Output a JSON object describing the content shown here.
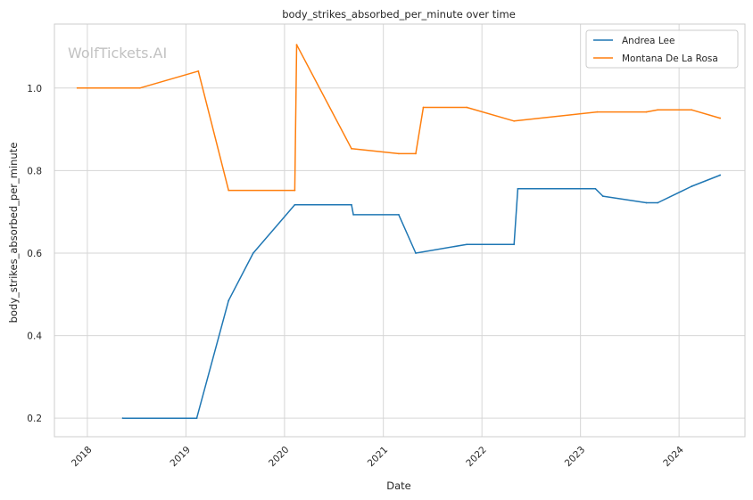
{
  "chart_data": {
    "type": "line",
    "title": "body_strikes_absorbed_per_minute over time",
    "xlabel": "Date",
    "ylabel": "body_strikes_absorbed_per_minute",
    "watermark": "WolfTickets.AI",
    "x_ticks": [
      "2018",
      "2019",
      "2020",
      "2021",
      "2022",
      "2023",
      "2024"
    ],
    "y_ticks": [
      "0.2",
      "0.4",
      "0.6",
      "0.8",
      "1.0"
    ],
    "xlim": [
      "2017-09-01",
      "2024-09-01"
    ],
    "ylim": [
      0.155,
      1.155
    ],
    "grid": true,
    "legend_position": "top-right",
    "series": [
      {
        "name": "Andrea Lee",
        "color": "#1f77b4",
        "points": [
          [
            "2018-05-12",
            0.2
          ],
          [
            "2019-02-10",
            0.2
          ],
          [
            "2019-06-08",
            0.485
          ],
          [
            "2019-09-07",
            0.6
          ],
          [
            "2020-02-08",
            0.717
          ],
          [
            "2020-09-05",
            0.717
          ],
          [
            "2020-09-12",
            0.693
          ],
          [
            "2021-02-27",
            0.693
          ],
          [
            "2021-05-01",
            0.6
          ],
          [
            "2021-11-06",
            0.621
          ],
          [
            "2022-04-30",
            0.621
          ],
          [
            "2022-05-14",
            0.756
          ],
          [
            "2023-02-25",
            0.756
          ],
          [
            "2023-03-25",
            0.738
          ],
          [
            "2023-09-02",
            0.722
          ],
          [
            "2023-10-14",
            0.722
          ],
          [
            "2024-02-17",
            0.762
          ],
          [
            "2024-06-01",
            0.789
          ]
        ]
      },
      {
        "name": "Montana De La Rosa",
        "color": "#ff7f0e",
        "points": [
          [
            "2017-11-25",
            1.0
          ],
          [
            "2018-07-14",
            1.0
          ],
          [
            "2019-02-16",
            1.041
          ],
          [
            "2019-06-08",
            0.752
          ],
          [
            "2020-02-08",
            0.752
          ],
          [
            "2020-02-15",
            1.105
          ],
          [
            "2020-09-05",
            0.853
          ],
          [
            "2021-02-27",
            0.841
          ],
          [
            "2021-05-01",
            0.841
          ],
          [
            "2021-05-29",
            0.953
          ],
          [
            "2021-11-06",
            0.953
          ],
          [
            "2022-04-30",
            0.92
          ],
          [
            "2023-03-04",
            0.942
          ],
          [
            "2023-09-02",
            0.942
          ],
          [
            "2023-10-14",
            0.947
          ],
          [
            "2024-02-17",
            0.947
          ],
          [
            "2024-06-01",
            0.927
          ]
        ]
      }
    ]
  }
}
